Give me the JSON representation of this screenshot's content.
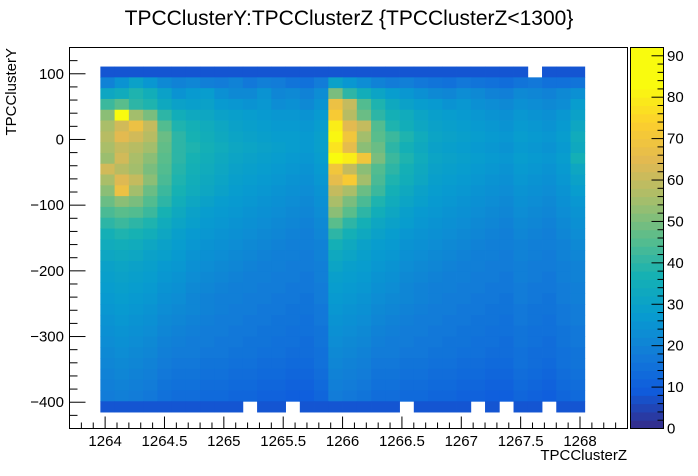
{
  "chart_data": {
    "type": "heatmap",
    "title": "TPCClusterY:TPCClusterZ {TPCClusterZ<1300}",
    "xlabel": "TPCClusterZ",
    "ylabel": "TPCClusterY",
    "xlim": [
      1263.7,
      1268.4
    ],
    "ylim": [
      -440,
      140
    ],
    "x_ticks": [
      1264,
      1264.5,
      1265,
      1265.5,
      1266,
      1266.5,
      1267,
      1267.5,
      1268
    ],
    "x_tick_labels": [
      "1264",
      "1264.5",
      "1265",
      "1265.5",
      "1266",
      "1266.5",
      "1267",
      "1267.5",
      "1268"
    ],
    "y_ticks": [
      100,
      0,
      -100,
      -200,
      -300,
      -400
    ],
    "y_tick_labels": [
      "100",
      "0",
      "−100",
      "−200",
      "−300",
      "−400"
    ],
    "z_range": [
      0,
      92
    ],
    "z_ticks": [
      0,
      10,
      20,
      30,
      40,
      50,
      60,
      70,
      80,
      90
    ],
    "z_tick_labels": [
      "0",
      "10",
      "20",
      "30",
      "40",
      "50",
      "60",
      "70",
      "80",
      "90"
    ],
    "colormap": "parula",
    "x_edges_range": [
      1263.96,
      1268.04
    ],
    "y_edges_range": [
      -415,
      111
    ],
    "n_x_bins": 34,
    "n_y_bins": 32,
    "z_grid_note": "rows from top (y=111) to bottom (y=-415), columns left to right",
    "z": [
      [
        8,
        8,
        8,
        8,
        8,
        8,
        8,
        8,
        8,
        8,
        8,
        8,
        8,
        8,
        8,
        8,
        8,
        8,
        8,
        8,
        8,
        8,
        8,
        8,
        8,
        8,
        8,
        8,
        8,
        8,
        0,
        8,
        8,
        8
      ],
      [
        20,
        25,
        30,
        26,
        22,
        20,
        21,
        19,
        18,
        20,
        17,
        19,
        18,
        16,
        15,
        18,
        30,
        26,
        23,
        20,
        18,
        19,
        17,
        16,
        15,
        17,
        16,
        15,
        14,
        16,
        17,
        15,
        15,
        16
      ],
      [
        32,
        34,
        38,
        35,
        30,
        25,
        27,
        28,
        24,
        22,
        22,
        25,
        21,
        22,
        20,
        23,
        50,
        40,
        35,
        31,
        28,
        26,
        24,
        22,
        21,
        23,
        22,
        20,
        19,
        22,
        21,
        20,
        22,
        24
      ],
      [
        42,
        46,
        40,
        38,
        33,
        30,
        29,
        30,
        27,
        26,
        25,
        26,
        23,
        24,
        22,
        25,
        68,
        60,
        45,
        38,
        33,
        30,
        28,
        27,
        25,
        26,
        24,
        23,
        22,
        24,
        23,
        22,
        23,
        28
      ],
      [
        52,
        85,
        55,
        50,
        40,
        35,
        33,
        32,
        30,
        29,
        28,
        27,
        26,
        26,
        25,
        27,
        72,
        58,
        48,
        40,
        36,
        34,
        31,
        29,
        28,
        27,
        26,
        25,
        24,
        26,
        25,
        24,
        26,
        30
      ],
      [
        56,
        62,
        68,
        60,
        45,
        38,
        36,
        34,
        32,
        30,
        29,
        28,
        27,
        27,
        26,
        28,
        80,
        65,
        60,
        45,
        38,
        35,
        32,
        30,
        29,
        28,
        27,
        26,
        25,
        27,
        26,
        25,
        27,
        32
      ],
      [
        58,
        65,
        62,
        58,
        48,
        40,
        37,
        35,
        33,
        31,
        30,
        29,
        28,
        28,
        27,
        29,
        82,
        70,
        55,
        46,
        42,
        38,
        34,
        31,
        30,
        29,
        28,
        27,
        26,
        28,
        27,
        26,
        28,
        34
      ],
      [
        56,
        60,
        58,
        55,
        47,
        40,
        38,
        36,
        34,
        32,
        31,
        30,
        29,
        28,
        27,
        29,
        78,
        66,
        52,
        48,
        40,
        36,
        33,
        30,
        29,
        28,
        27,
        26,
        25,
        27,
        26,
        25,
        27,
        33
      ],
      [
        54,
        62,
        56,
        52,
        46,
        40,
        37,
        35,
        33,
        31,
        30,
        29,
        28,
        27,
        26,
        28,
        92,
        80,
        70,
        50,
        42,
        38,
        34,
        31,
        30,
        29,
        28,
        27,
        26,
        28,
        27,
        26,
        28,
        36
      ],
      [
        62,
        58,
        55,
        50,
        45,
        39,
        36,
        34,
        32,
        30,
        29,
        28,
        27,
        26,
        25,
        27,
        70,
        60,
        52,
        45,
        40,
        36,
        33,
        30,
        29,
        28,
        27,
        26,
        25,
        27,
        26,
        25,
        27,
        32
      ],
      [
        56,
        64,
        60,
        52,
        44,
        38,
        35,
        33,
        31,
        29,
        28,
        27,
        26,
        25,
        24,
        26,
        66,
        72,
        55,
        44,
        38,
        35,
        32,
        29,
        28,
        27,
        26,
        25,
        24,
        26,
        25,
        24,
        26,
        30
      ],
      [
        52,
        68,
        55,
        48,
        42,
        37,
        34,
        32,
        30,
        28,
        27,
        26,
        25,
        24,
        23,
        25,
        60,
        56,
        48,
        42,
        36,
        33,
        30,
        28,
        27,
        26,
        25,
        24,
        23,
        25,
        24,
        23,
        25,
        28
      ],
      [
        48,
        52,
        50,
        45,
        40,
        35,
        32,
        30,
        28,
        27,
        26,
        25,
        24,
        23,
        22,
        24,
        56,
        50,
        44,
        38,
        34,
        31,
        29,
        27,
        26,
        25,
        24,
        23,
        22,
        24,
        23,
        22,
        24,
        26
      ],
      [
        44,
        46,
        45,
        42,
        37,
        33,
        30,
        28,
        27,
        26,
        25,
        24,
        23,
        22,
        21,
        23,
        52,
        46,
        40,
        35,
        32,
        29,
        27,
        26,
        25,
        24,
        23,
        22,
        21,
        23,
        22,
        21,
        23,
        25
      ],
      [
        40,
        42,
        40,
        38,
        34,
        31,
        29,
        27,
        26,
        25,
        24,
        23,
        22,
        21,
        20,
        22,
        46,
        40,
        36,
        32,
        30,
        28,
        26,
        25,
        24,
        23,
        22,
        21,
        20,
        22,
        21,
        20,
        22,
        24
      ],
      [
        36,
        38,
        37,
        35,
        32,
        29,
        27,
        26,
        25,
        24,
        23,
        22,
        21,
        20,
        19,
        21,
        40,
        36,
        33,
        30,
        28,
        26,
        25,
        24,
        23,
        22,
        21,
        20,
        19,
        21,
        20,
        19,
        21,
        23
      ],
      [
        34,
        35,
        34,
        32,
        30,
        28,
        26,
        25,
        24,
        23,
        22,
        21,
        20,
        19,
        19,
        20,
        36,
        33,
        30,
        28,
        27,
        25,
        24,
        23,
        22,
        21,
        20,
        19,
        19,
        20,
        19,
        19,
        20,
        22
      ],
      [
        32,
        33,
        32,
        30,
        29,
        27,
        25,
        24,
        23,
        22,
        21,
        20,
        19,
        19,
        18,
        20,
        33,
        31,
        29,
        27,
        26,
        24,
        23,
        22,
        21,
        20,
        19,
        19,
        18,
        20,
        19,
        18,
        20,
        21
      ],
      [
        30,
        31,
        30,
        29,
        27,
        26,
        24,
        23,
        22,
        21,
        20,
        19,
        19,
        18,
        18,
        19,
        31,
        29,
        28,
        26,
        25,
        23,
        22,
        21,
        20,
        19,
        19,
        18,
        18,
        19,
        18,
        18,
        19,
        20
      ],
      [
        29,
        30,
        29,
        28,
        26,
        25,
        23,
        22,
        21,
        20,
        19,
        19,
        18,
        18,
        17,
        19,
        29,
        28,
        27,
        25,
        24,
        22,
        21,
        20,
        19,
        19,
        18,
        18,
        17,
        19,
        18,
        17,
        19,
        20
      ],
      [
        28,
        29,
        28,
        27,
        25,
        24,
        22,
        21,
        20,
        19,
        19,
        18,
        18,
        17,
        17,
        18,
        28,
        27,
        26,
        24,
        23,
        21,
        20,
        19,
        19,
        18,
        18,
        17,
        17,
        18,
        17,
        17,
        18,
        19
      ],
      [
        27,
        28,
        27,
        26,
        24,
        23,
        21,
        20,
        19,
        19,
        18,
        18,
        17,
        17,
        16,
        18,
        27,
        26,
        25,
        23,
        22,
        21,
        20,
        19,
        18,
        18,
        17,
        17,
        16,
        18,
        17,
        16,
        18,
        19
      ],
      [
        26,
        27,
        26,
        25,
        23,
        22,
        21,
        20,
        19,
        18,
        18,
        17,
        17,
        16,
        16,
        17,
        26,
        25,
        24,
        22,
        21,
        20,
        19,
        18,
        18,
        17,
        17,
        16,
        16,
        17,
        16,
        16,
        17,
        18
      ],
      [
        25,
        26,
        25,
        24,
        22,
        21,
        20,
        19,
        18,
        18,
        17,
        17,
        16,
        16,
        15,
        17,
        25,
        24,
        23,
        21,
        20,
        19,
        18,
        18,
        17,
        17,
        16,
        16,
        15,
        17,
        16,
        15,
        17,
        18
      ],
      [
        24,
        25,
        24,
        23,
        21,
        20,
        19,
        18,
        18,
        17,
        17,
        16,
        16,
        15,
        15,
        16,
        24,
        23,
        22,
        20,
        19,
        18,
        18,
        17,
        17,
        16,
        16,
        15,
        15,
        16,
        15,
        15,
        16,
        17
      ],
      [
        23,
        24,
        23,
        22,
        20,
        19,
        18,
        18,
        17,
        17,
        16,
        16,
        15,
        15,
        14,
        16,
        23,
        22,
        21,
        19,
        18,
        18,
        17,
        17,
        16,
        16,
        15,
        15,
        14,
        16,
        15,
        14,
        16,
        17
      ],
      [
        22,
        23,
        22,
        21,
        19,
        18,
        18,
        17,
        17,
        16,
        16,
        15,
        15,
        14,
        14,
        15,
        22,
        21,
        20,
        18,
        18,
        17,
        17,
        16,
        16,
        15,
        15,
        14,
        14,
        15,
        14,
        14,
        15,
        16
      ],
      [
        21,
        22,
        21,
        20,
        18,
        17,
        17,
        16,
        16,
        15,
        15,
        14,
        14,
        13,
        13,
        15,
        21,
        20,
        19,
        17,
        17,
        16,
        16,
        15,
        15,
        14,
        14,
        13,
        13,
        15,
        14,
        13,
        15,
        16
      ],
      [
        20,
        21,
        20,
        19,
        17,
        16,
        16,
        15,
        15,
        14,
        14,
        13,
        13,
        12,
        12,
        14,
        20,
        19,
        18,
        16,
        16,
        15,
        15,
        14,
        14,
        13,
        13,
        12,
        12,
        14,
        13,
        12,
        14,
        15
      ],
      [
        19,
        20,
        19,
        18,
        16,
        15,
        15,
        14,
        14,
        13,
        13,
        12,
        12,
        11,
        11,
        13,
        19,
        18,
        17,
        15,
        15,
        14,
        14,
        13,
        13,
        12,
        12,
        11,
        11,
        13,
        12,
        11,
        13,
        14
      ],
      [
        18,
        19,
        18,
        17,
        15,
        14,
        14,
        13,
        13,
        12,
        12,
        11,
        11,
        10,
        10,
        12,
        18,
        17,
        16,
        14,
        14,
        13,
        13,
        12,
        12,
        11,
        11,
        10,
        10,
        12,
        11,
        10,
        12,
        13
      ],
      [
        8,
        8,
        8,
        8,
        8,
        8,
        8,
        8,
        8,
        8,
        0,
        8,
        8,
        0,
        8,
        8,
        8,
        8,
        8,
        8,
        8,
        0,
        8,
        8,
        8,
        8,
        0,
        8,
        0,
        8,
        8,
        0,
        8,
        8
      ]
    ]
  }
}
